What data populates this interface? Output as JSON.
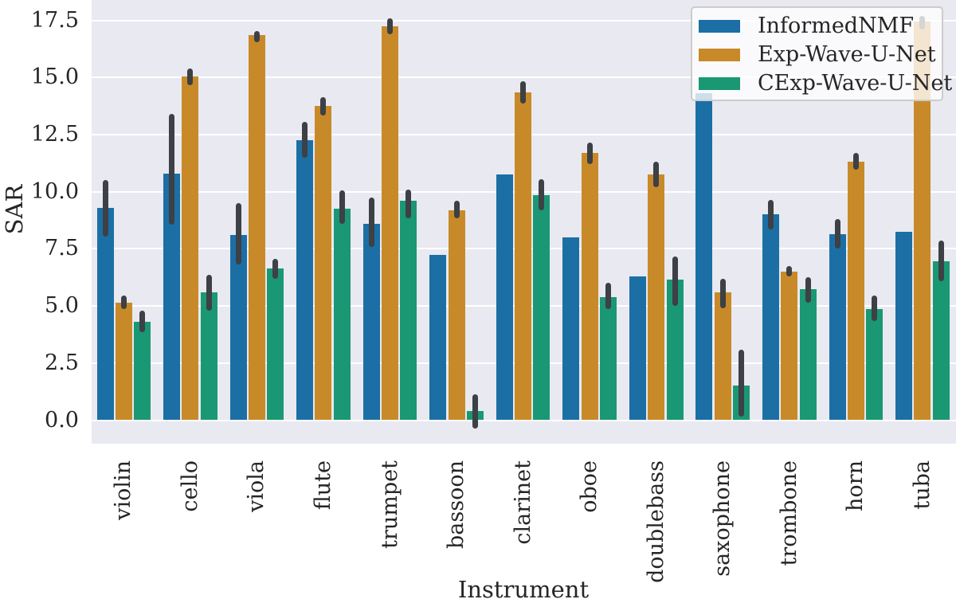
{
  "chart_data": {
    "type": "bar",
    "title": "",
    "xlabel": "Instrument",
    "ylabel": "SAR",
    "ylim": [
      -1.0,
      18.4
    ],
    "grid": true,
    "legend_position": "upper right",
    "background": "#e9e9f1",
    "errorbar_color": "#3d4045",
    "yticks": [
      0.0,
      2.5,
      5.0,
      7.5,
      10.0,
      12.5,
      15.0,
      17.5
    ],
    "ytick_labels": [
      "0.0",
      "2.5",
      "5.0",
      "7.5",
      "10.0",
      "12.5",
      "15.0",
      "17.5"
    ],
    "categories": [
      "violin",
      "cello",
      "viola",
      "flute",
      "trumpet",
      "bassoon",
      "clarinet",
      "oboe",
      "doublebass",
      "saxophone",
      "trombone",
      "horn",
      "tuba"
    ],
    "series": [
      {
        "name": "InformedNMF",
        "color": "#1b6fa5",
        "values": [
          9.3,
          10.8,
          8.1,
          12.25,
          8.6,
          7.25,
          10.75,
          8.0,
          6.3,
          14.3,
          9.0,
          8.15,
          8.25
        ],
        "errors": [
          [
            8.05,
            10.5
          ],
          [
            8.55,
            13.4
          ],
          [
            6.8,
            9.5
          ],
          [
            11.5,
            13.05
          ],
          [
            7.6,
            9.75
          ],
          null,
          null,
          null,
          null,
          null,
          [
            8.35,
            9.65
          ],
          [
            7.5,
            8.8
          ],
          null
        ]
      },
      {
        "name": "Exp-Wave-U-Net",
        "color": "#c88a28",
        "values": [
          5.15,
          15.05,
          16.85,
          13.75,
          17.25,
          9.2,
          14.35,
          11.7,
          10.75,
          5.6,
          6.5,
          11.3,
          17.45
        ],
        "errors": [
          [
            4.85,
            5.45
          ],
          [
            14.65,
            15.4
          ],
          [
            16.55,
            17.05
          ],
          [
            13.35,
            14.15
          ],
          [
            16.9,
            17.6
          ],
          [
            8.85,
            9.6
          ],
          [
            13.85,
            14.85
          ],
          [
            11.2,
            12.15
          ],
          [
            10.2,
            11.3
          ],
          [
            4.9,
            6.2
          ],
          [
            6.3,
            6.75
          ],
          [
            10.95,
            11.7
          ],
          [
            17.1,
            17.7
          ]
        ]
      },
      {
        "name": "CExp-Wave-U-Net",
        "color": "#1a9873",
        "values": [
          4.3,
          5.6,
          6.65,
          9.25,
          9.6,
          0.4,
          9.85,
          5.4,
          6.15,
          1.5,
          5.75,
          4.85,
          6.95
        ],
        "errors": [
          [
            3.85,
            4.8
          ],
          [
            4.8,
            6.35
          ],
          [
            6.2,
            7.05
          ],
          [
            8.6,
            10.05
          ],
          [
            8.85,
            10.1
          ],
          [
            -0.35,
            1.15
          ],
          [
            9.2,
            10.55
          ],
          [
            4.85,
            6.0
          ],
          [
            5.0,
            7.15
          ],
          [
            0.15,
            3.1
          ],
          [
            5.15,
            6.25
          ],
          [
            4.35,
            5.45
          ],
          [
            6.1,
            7.85
          ]
        ]
      }
    ]
  }
}
